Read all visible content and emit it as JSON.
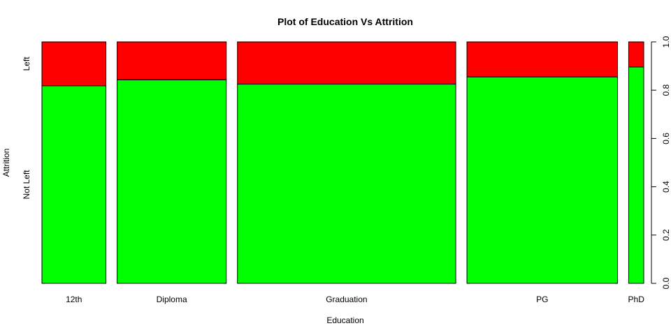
{
  "chart_data": {
    "type": "bar",
    "subtype": "spineplot",
    "title": "Plot of Education Vs Attrition",
    "xlabel": "Education",
    "ylabel": "Attrition",
    "categories": [
      "12th",
      "Diploma",
      "Graduation",
      "PG",
      "PhD"
    ],
    "category_proportions": [
      0.17,
      0.29,
      0.58,
      0.4,
      0.04
    ],
    "series": [
      {
        "name": "Not Left",
        "color": "#00ff00",
        "values": [
          0.818,
          0.843,
          0.825,
          0.855,
          0.896
        ]
      },
      {
        "name": "Left",
        "color": "#ff0000",
        "values": [
          0.182,
          0.157,
          0.175,
          0.145,
          0.104
        ]
      }
    ],
    "left_axis_labels": [
      "Not Left",
      "Left"
    ],
    "right_axis": {
      "ylim": [
        0,
        1
      ],
      "ticks": [
        0.0,
        0.2,
        0.4,
        0.6,
        0.8,
        1.0
      ],
      "tick_labels": [
        "0.0",
        "0.2",
        "0.4",
        "0.6",
        "0.8",
        "1.0"
      ]
    },
    "grid": false,
    "legend": "none"
  }
}
